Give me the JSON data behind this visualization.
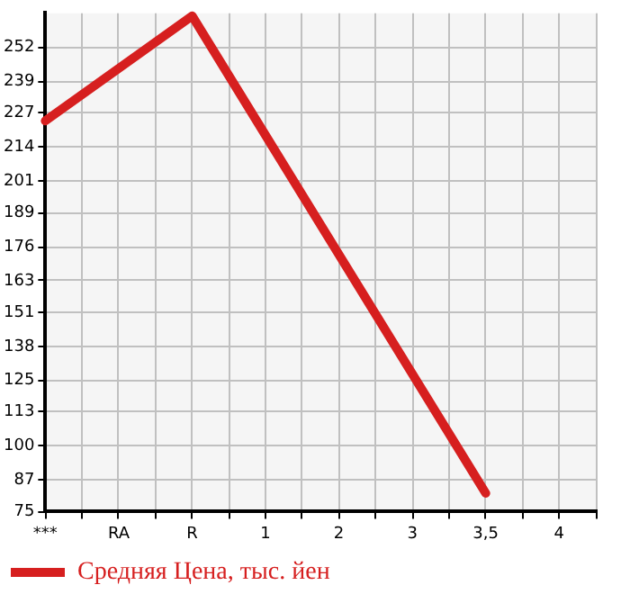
{
  "chart_data": {
    "type": "line",
    "categories": [
      "***",
      "RA",
      "R",
      "1",
      "2",
      "3",
      "3,5",
      "4"
    ],
    "series": [
      {
        "name": "Средняя Цена, тыс. йен",
        "color": "#d61f1f",
        "values": [
          224,
          null,
          264,
          null,
          null,
          null,
          82,
          null
        ]
      }
    ],
    "ylim": [
      75,
      265
    ],
    "yticks": [
      75,
      87,
      100,
      113,
      125,
      138,
      151,
      163,
      176,
      189,
      201,
      214,
      227,
      239,
      252
    ],
    "grid": true,
    "legend": "bottom left",
    "marker": "none",
    "line_style": "solid"
  }
}
